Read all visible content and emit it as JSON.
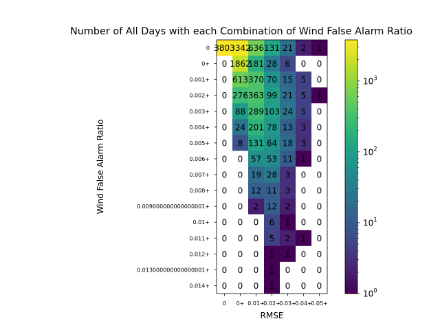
{
  "chart_data": {
    "type": "heatmap",
    "title": "Number of All Days with each Combination of Wind False Alarm Ratio",
    "xlabel": "RMSE",
    "ylabel": "Wind False Alarm Ratio",
    "x_categories": [
      "0",
      "0+",
      "0.01+",
      "0.02+",
      "0.03+",
      "0.04+",
      "0.05+"
    ],
    "y_categories": [
      "0",
      "0+",
      "0.001+",
      "0.002+",
      "0.003+",
      "0.004+",
      "0.005+",
      "0.006+",
      "0.007+",
      "0.008+",
      "0.009000000000000001+",
      "0.01+",
      "0.011+",
      "0.012+",
      "0.013000000000000001+",
      "0.014+"
    ],
    "values": [
      [
        3803,
        3342,
        636,
        131,
        21,
        2,
        1
      ],
      [
        0,
        1862,
        181,
        28,
        6,
        0,
        0
      ],
      [
        0,
        613,
        370,
        70,
        15,
        5,
        0
      ],
      [
        0,
        276,
        363,
        99,
        21,
        5,
        1
      ],
      [
        0,
        88,
        289,
        103,
        24,
        5,
        0
      ],
      [
        0,
        24,
        201,
        78,
        13,
        3,
        0
      ],
      [
        0,
        8,
        131,
        64,
        18,
        3,
        0
      ],
      [
        0,
        0,
        57,
        53,
        11,
        1,
        0
      ],
      [
        0,
        0,
        19,
        28,
        3,
        0,
        0
      ],
      [
        0,
        0,
        12,
        11,
        3,
        0,
        0
      ],
      [
        0,
        0,
        2,
        12,
        2,
        0,
        0
      ],
      [
        0,
        0,
        0,
        6,
        1,
        0,
        0
      ],
      [
        0,
        0,
        0,
        5,
        2,
        1,
        0
      ],
      [
        0,
        0,
        0,
        1,
        1,
        0,
        0
      ],
      [
        0,
        0,
        0,
        1,
        0,
        0,
        0
      ],
      [
        0,
        0,
        0,
        1,
        0,
        0,
        0
      ]
    ],
    "color_scale": "log",
    "colormap": "viridis",
    "zero_color": "#ffffff",
    "colorbar": {
      "range": [
        1,
        3803
      ],
      "tick_labels": [
        {
          "value": 1,
          "label": "10",
          "exp": "0"
        },
        {
          "value": 10,
          "label": "10",
          "exp": "1"
        },
        {
          "value": 100,
          "label": "10",
          "exp": "2"
        },
        {
          "value": 1000,
          "label": "10",
          "exp": "3"
        }
      ]
    }
  }
}
